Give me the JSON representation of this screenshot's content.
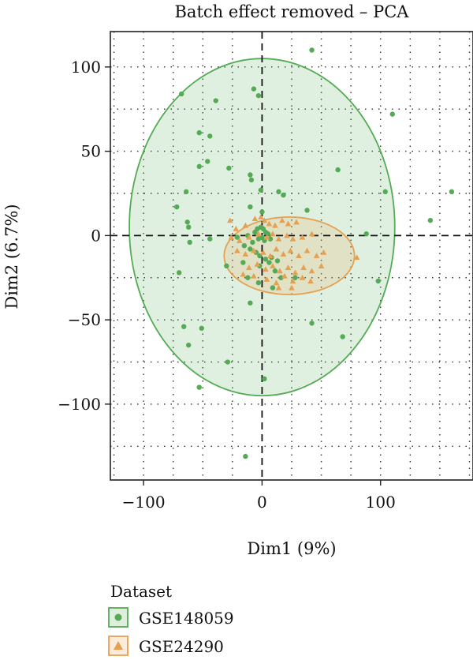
{
  "chart_data": {
    "type": "scatter",
    "title": "Batch effect removed – PCA",
    "xlabel": "Dim1 (9%)",
    "ylabel": "Dim2 (6.7%)",
    "xlim": [
      -128,
      178
    ],
    "ylim": [
      -145,
      121
    ],
    "xticks": [
      -100,
      0,
      100
    ],
    "xtick_labels": [
      "−100",
      "0",
      "100"
    ],
    "yticks": [
      100,
      50,
      0,
      -50,
      -100
    ],
    "ytick_labels": [
      "100",
      "50",
      "0",
      "−50",
      "−100"
    ],
    "grid": "dotted",
    "zero_lines": "dashed",
    "legend": {
      "title": "Dataset",
      "placement": "bottom-left",
      "entries": [
        {
          "label": "GSE148059",
          "marker": "circle",
          "color": "#55aa55"
        },
        {
          "label": "GSE24290",
          "marker": "triangle",
          "color": "#e5a050"
        }
      ]
    },
    "series": [
      {
        "name": "GSE148059",
        "marker": "circle",
        "color": "#55aa55",
        "ellipse": {
          "cx": 0,
          "cy": 5,
          "rx": 112,
          "ry": 100
        },
        "points": [
          [
            42,
            110
          ],
          [
            -68,
            84
          ],
          [
            -39,
            80
          ],
          [
            -7,
            87
          ],
          [
            -3,
            83
          ],
          [
            110,
            72
          ],
          [
            -53,
            61
          ],
          [
            -44,
            59
          ],
          [
            -46,
            44
          ],
          [
            -53,
            41
          ],
          [
            -28,
            40
          ],
          [
            64,
            39
          ],
          [
            -10,
            36
          ],
          [
            -9,
            33
          ],
          [
            -1,
            27
          ],
          [
            14,
            26
          ],
          [
            18,
            24
          ],
          [
            -64,
            26
          ],
          [
            104,
            26
          ],
          [
            160,
            26
          ],
          [
            -72,
            17
          ],
          [
            -10,
            17
          ],
          [
            0,
            14
          ],
          [
            38,
            15
          ],
          [
            -63,
            8
          ],
          [
            -62,
            5
          ],
          [
            142,
            9
          ],
          [
            88,
            1
          ],
          [
            -44,
            -2
          ],
          [
            -21,
            -1
          ],
          [
            -6,
            2
          ],
          [
            -4,
            4
          ],
          [
            -1,
            5
          ],
          [
            1,
            4
          ],
          [
            3,
            2
          ],
          [
            5,
            1
          ],
          [
            -8,
            -4
          ],
          [
            -3,
            -2
          ],
          [
            0,
            -1
          ],
          [
            2,
            -3
          ],
          [
            7,
            -2
          ],
          [
            -15,
            -6
          ],
          [
            -10,
            -8
          ],
          [
            -5,
            -10
          ],
          [
            -2,
            -12
          ],
          [
            3,
            -14
          ],
          [
            8,
            -13
          ],
          [
            13,
            -15
          ],
          [
            -61,
            -4
          ],
          [
            -12,
            0
          ],
          [
            -16,
            -16
          ],
          [
            -2,
            -18
          ],
          [
            6,
            -16
          ],
          [
            11,
            -21
          ],
          [
            28,
            -25
          ],
          [
            -30,
            -18
          ],
          [
            -12,
            -25
          ],
          [
            -3,
            -28
          ],
          [
            9,
            -31
          ],
          [
            16,
            -25
          ],
          [
            98,
            -27
          ],
          [
            -70,
            -22
          ],
          [
            -10,
            -40
          ],
          [
            -66,
            -54
          ],
          [
            -51,
            -55
          ],
          [
            42,
            -52
          ],
          [
            -62,
            -65
          ],
          [
            68,
            -60
          ],
          [
            -29,
            -75
          ],
          [
            2,
            -85
          ],
          [
            -53,
            -90
          ],
          [
            -14,
            -131
          ]
        ]
      },
      {
        "name": "GSE24290",
        "marker": "triangle",
        "color": "#e5a050",
        "ellipse": {
          "cx": 23,
          "cy": -12,
          "rx": 55,
          "ry": 23
        },
        "points": [
          [
            -27,
            9
          ],
          [
            -22,
            4
          ],
          [
            -14,
            6
          ],
          [
            -6,
            10
          ],
          [
            -1,
            11
          ],
          [
            2,
            9
          ],
          [
            6,
            7
          ],
          [
            11,
            6
          ],
          [
            17,
            9
          ],
          [
            22,
            7
          ],
          [
            29,
            8
          ],
          [
            -26,
            -1
          ],
          [
            -19,
            -3
          ],
          [
            -11,
            -1
          ],
          [
            -3,
            1
          ],
          [
            4,
            -1
          ],
          [
            9,
            1
          ],
          [
            14,
            -2
          ],
          [
            21,
            0
          ],
          [
            26,
            -2
          ],
          [
            34,
            -1
          ],
          [
            42,
            1
          ],
          [
            -21,
            -9
          ],
          [
            -14,
            -11
          ],
          [
            -7,
            -9
          ],
          [
            1,
            -10
          ],
          [
            7,
            -12
          ],
          [
            12,
            -8
          ],
          [
            18,
            -11
          ],
          [
            24,
            -9
          ],
          [
            31,
            -12
          ],
          [
            38,
            -9
          ],
          [
            46,
            -12
          ],
          [
            52,
            -10
          ],
          [
            -11,
            -19
          ],
          [
            -4,
            -17
          ],
          [
            3,
            -20
          ],
          [
            9,
            -18
          ],
          [
            15,
            -21
          ],
          [
            22,
            -19
          ],
          [
            28,
            -22
          ],
          [
            35,
            -19
          ],
          [
            42,
            -21
          ],
          [
            50,
            -18
          ],
          [
            4,
            -26
          ],
          [
            12,
            -28
          ],
          [
            19,
            -24
          ],
          [
            26,
            -27
          ],
          [
            34,
            -25
          ],
          [
            41,
            -27
          ],
          [
            14,
            -31
          ],
          [
            25,
            -31
          ],
          [
            80,
            -13
          ],
          [
            -16,
            -23
          ],
          [
            -7,
            -24
          ]
        ]
      }
    ]
  }
}
